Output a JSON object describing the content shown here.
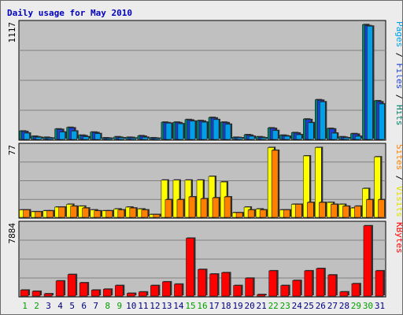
{
  "chart_data": {
    "type": "bar",
    "title": "Daily usage for May 2010",
    "days": [
      "1",
      "2",
      "3",
      "4",
      "5",
      "6",
      "7",
      "8",
      "9",
      "10",
      "11",
      "12",
      "13",
      "14",
      "15",
      "16",
      "17",
      "18",
      "19",
      "20",
      "21",
      "22",
      "23",
      "24",
      "25",
      "26",
      "27",
      "28",
      "29",
      "30",
      "31"
    ],
    "weekend_days": [
      "1",
      "2",
      "8",
      "9",
      "15",
      "16",
      "22",
      "23",
      "29",
      "30"
    ],
    "panels": [
      {
        "id": "hits",
        "max_label": "1117",
        "max": 1117,
        "legend": [
          {
            "text": "Pages",
            "color": "#00a0e8"
          },
          {
            "text": " / ",
            "color": "#000000"
          },
          {
            "text": "Files",
            "color": "#1b3fd8"
          },
          {
            "text": " / ",
            "color": "#000000"
          },
          {
            "text": "Hits",
            "color": "#00806a"
          }
        ],
        "series": [
          {
            "key": "hits",
            "color": "#00806a",
            "values": [
              80,
              30,
              20,
              100,
              115,
              40,
              70,
              15,
              25,
              20,
              35,
              15,
              165,
              165,
              190,
              180,
              210,
              165,
              20,
              45,
              25,
              110,
              40,
              65,
              195,
              380,
              105,
              25,
              55,
              1100,
              370
            ]
          },
          {
            "key": "files",
            "color": "#1b3fd8",
            "values": [
              75,
              25,
              15,
              95,
              110,
              35,
              65,
              12,
              20,
              18,
              30,
              12,
              160,
              160,
              185,
              175,
              205,
              160,
              18,
              40,
              20,
              105,
              35,
              60,
              190,
              375,
              100,
              20,
              50,
              1090,
              360
            ]
          },
          {
            "key": "pages",
            "color": "#00a0e8",
            "values": [
              60,
              20,
              12,
              70,
              80,
              25,
              55,
              10,
              15,
              12,
              20,
              10,
              155,
              150,
              175,
              165,
              190,
              145,
              15,
              30,
              15,
              85,
              30,
              45,
              160,
              360,
              60,
              15,
              30,
              1085,
              340
            ]
          }
        ]
      },
      {
        "id": "visits",
        "max_label": "77",
        "max": 77,
        "legend": [
          {
            "text": "Sites",
            "color": "#ff8000"
          },
          {
            "text": " / ",
            "color": "#000000"
          },
          {
            "text": "Visits",
            "color": "#e0e000"
          }
        ],
        "series": [
          {
            "key": "visits",
            "color": "#ffff00",
            "values": [
              8,
              6,
              7,
              11,
              14,
              12,
              8,
              7,
              9,
              11,
              9,
              3,
              40,
              40,
              40,
              40,
              44,
              38,
              5,
              11,
              9,
              75,
              8,
              14,
              66,
              75,
              16,
              14,
              10,
              31,
              65
            ]
          },
          {
            "key": "sites",
            "color": "#ff8000",
            "values": [
              8,
              6,
              7,
              11,
              12,
              10,
              7,
              7,
              8,
              10,
              8,
              3,
              19,
              19,
              22,
              20,
              21,
              22,
              5,
              8,
              8,
              72,
              8,
              14,
              16,
              16,
              14,
              12,
              12,
              19,
              19
            ]
          }
        ]
      },
      {
        "id": "kbytes",
        "max_label": "7884",
        "max": 7884,
        "legend": [
          {
            "text": "KBytes",
            "color": "#ff0000"
          }
        ],
        "series": [
          {
            "key": "kbytes",
            "color": "#ff0000",
            "values": [
              650,
              520,
              250,
              1650,
              2350,
              1450,
              650,
              750,
              1150,
              300,
              450,
              1150,
              1550,
              1300,
              6300,
              2900,
              2400,
              2550,
              1150,
              1950,
              170,
              2750,
              1150,
              1700,
              2750,
              3000,
              2300,
              460,
              1350,
              7650,
              2750
            ]
          }
        ]
      }
    ]
  }
}
